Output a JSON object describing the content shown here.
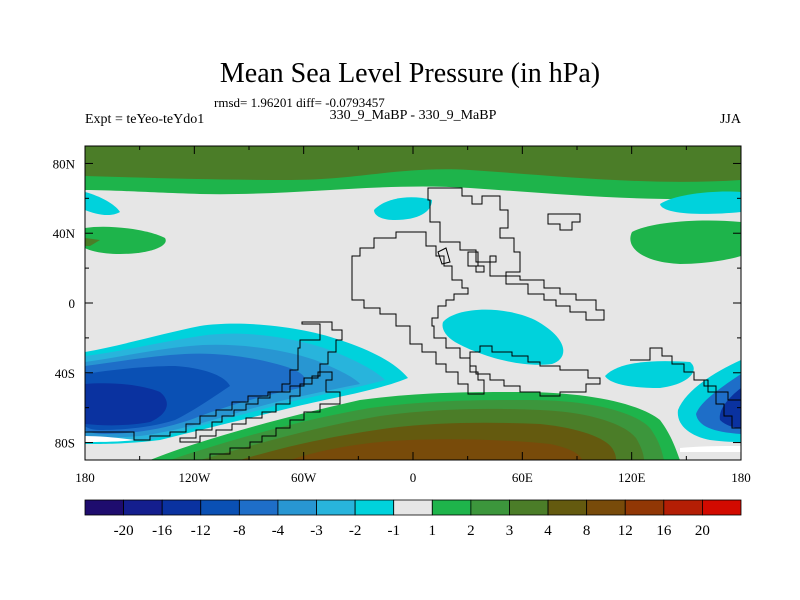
{
  "chart_data": {
    "type": "heatmap",
    "title": "Mean Sea Level Pressure (in hPa)",
    "stats_text": "rmsd= 1.96201 diff= -0.0793457",
    "left_label": "Expt = teYeo-teYdo1",
    "center_label": "330_9_MaBP - 330_9_MaBP",
    "right_label": "JJA",
    "x_range": [
      -180,
      180
    ],
    "y_range": [
      -90,
      90
    ],
    "x_ticks": [
      {
        "value": -180,
        "label": "180"
      },
      {
        "value": -120,
        "label": "120W"
      },
      {
        "value": -60,
        "label": "60W"
      },
      {
        "value": 0,
        "label": "0"
      },
      {
        "value": 60,
        "label": "60E"
      },
      {
        "value": 120,
        "label": "120E"
      },
      {
        "value": 180,
        "label": "180"
      }
    ],
    "y_ticks": [
      {
        "value": 80,
        "label": "80N"
      },
      {
        "value": 40,
        "label": "40N"
      },
      {
        "value": 0,
        "label": "0"
      },
      {
        "value": -40,
        "label": "40S"
      },
      {
        "value": -80,
        "label": "80S"
      }
    ],
    "colorbar": {
      "levels": [
        "-20",
        "-16",
        "-12",
        "-8",
        "-4",
        "-3",
        "-2",
        "-1",
        "1",
        "2",
        "3",
        "4",
        "8",
        "12",
        "16",
        "20"
      ],
      "colors": [
        "#1e0c6e",
        "#141e8e",
        "#0a32a0",
        "#0a50b4",
        "#1e6ec8",
        "#2896d2",
        "#28b4dc",
        "#00d2dc",
        "#e6e6e6",
        "#1eb44b",
        "#3c963c",
        "#4b7d28",
        "#645a0f",
        "#784b0a",
        "#913705",
        "#b41e05",
        "#d20a00"
      ]
    }
  }
}
